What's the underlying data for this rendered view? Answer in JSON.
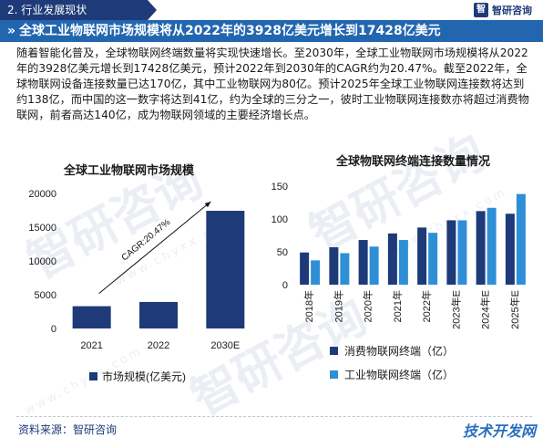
{
  "header": {
    "section_label": "2. 行业发展现状",
    "brand_logo": "智",
    "brand_name": "智研咨询",
    "title": "全球工业物联网市场规模将从2022年的3928亿美元增长到17428亿美元"
  },
  "body_text": "随着智能化普及，全球物联网终端数量将实现快速增长。至2030年，全球工业物联网市场规模将从2022年的3928亿美元增长到17428亿美元，预计2022年到2030年的CAGR约为20.47%。截至2022年，全球物联网设备连接数量已达170亿，其中工业物联网为80亿。预计2025年全球工业物联网连接数将达到约138亿，而中国的这一数字将达到41亿，约为全球的三分之一，彼时工业物联网连接数亦将超过消费物联网，前者高达140亿，成为物联网领域的主要经济增长点。",
  "watermark": {
    "text": "智研咨询",
    "url_text": "www.chyxx.com"
  },
  "footer": {
    "source": "资料来源：智研咨询",
    "corner_mark": "技术开发网"
  },
  "colors": {
    "dark_blue": "#1e3a78",
    "light_blue": "#2f8fd6",
    "title_blue": "#2266b0"
  },
  "chart_data": [
    {
      "type": "bar",
      "title": "全球工业物联网市场规模",
      "categories": [
        "2021",
        "2022",
        "2030E"
      ],
      "series": [
        {
          "name": "市场规模(亿美元)",
          "values": [
            3300,
            3928,
            17428
          ]
        }
      ],
      "ylim": [
        0,
        20000
      ],
      "yticks": [
        "0",
        "5000",
        "10000",
        "15000",
        "20000"
      ],
      "annotation": "CAGR:20.47%",
      "legend": "bottom",
      "grid": false
    },
    {
      "type": "bar",
      "title": "全球物联网终端连接数量情况",
      "categories": [
        "2018年",
        "2019年",
        "2020年",
        "2021年",
        "2022年",
        "2023年E",
        "2024年E",
        "2025年E"
      ],
      "series": [
        {
          "name": "消费物联网终端（亿）",
          "values": [
            49,
            57,
            68,
            78,
            87,
            98,
            112,
            108
          ]
        },
        {
          "name": "工业物联网终端（亿）",
          "values": [
            37,
            48,
            58,
            68,
            79,
            98,
            117,
            138
          ]
        }
      ],
      "ylim": [
        0,
        150
      ],
      "yticks": [
        "0",
        "50",
        "100",
        "150"
      ],
      "legend": "bottom",
      "grid": false
    }
  ]
}
